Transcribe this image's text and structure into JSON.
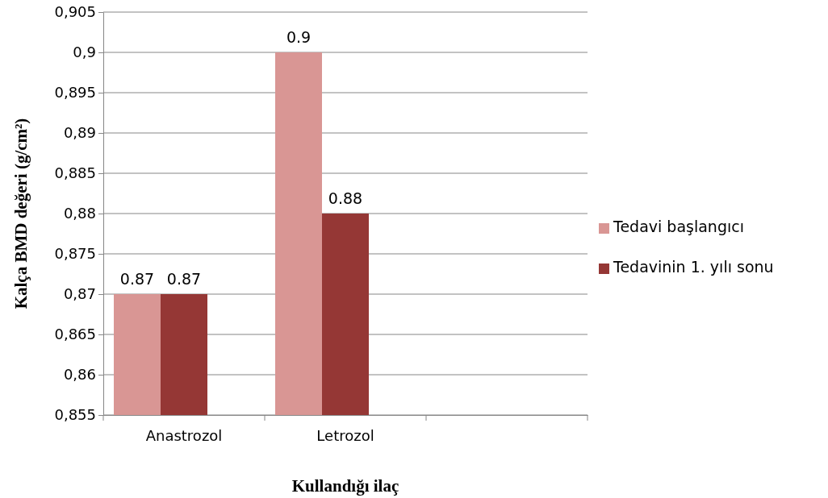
{
  "chart_data": {
    "type": "bar",
    "xlabel": "Kullandığı ilaç",
    "ylabel": "Kalça BMD değeri (g/cm²)",
    "categories": [
      "Anastrozol",
      "Letrozol",
      null
    ],
    "series": [
      {
        "name": "Tedavi başlangıcı",
        "color": "#d99694",
        "values": [
          0.87,
          0.9,
          null
        ]
      },
      {
        "name": "Tedavinin 1. yılı sonu",
        "color": "#953735",
        "values": [
          0.87,
          0.88,
          null
        ]
      }
    ],
    "ylim": [
      0.855,
      0.905
    ],
    "yticks": [
      {
        "value": 0.855,
        "label": "0,855"
      },
      {
        "value": 0.86,
        "label": "0,86"
      },
      {
        "value": 0.865,
        "label": "0,865"
      },
      {
        "value": 0.87,
        "label": "0,87"
      },
      {
        "value": 0.875,
        "label": "0,875"
      },
      {
        "value": 0.88,
        "label": "0,88"
      },
      {
        "value": 0.885,
        "label": "0,885"
      },
      {
        "value": 0.89,
        "label": "0,89"
      },
      {
        "value": 0.895,
        "label": "0,895"
      },
      {
        "value": 0.9,
        "label": "0,9"
      },
      {
        "value": 0.905,
        "label": "0,905"
      }
    ],
    "grid": "y",
    "legend": "right",
    "data_labels": true
  }
}
